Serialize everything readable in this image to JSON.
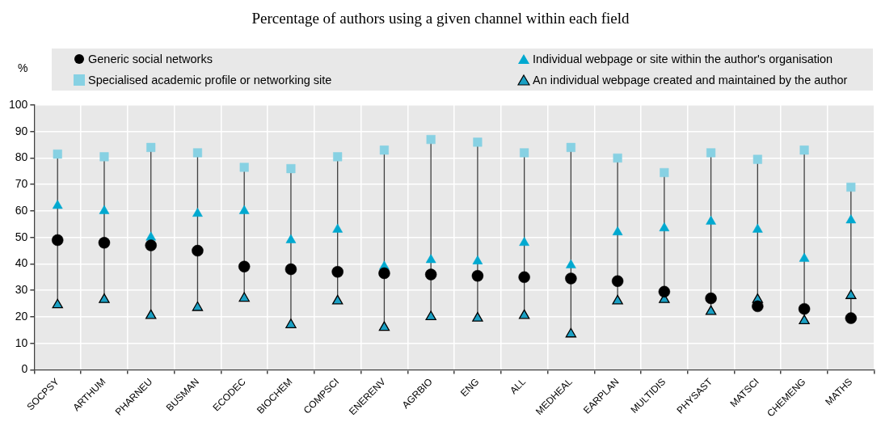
{
  "chart_data": {
    "type": "scatter",
    "title": "Percentage of authors using a given channel within each field",
    "ylabel": "%",
    "categories": [
      "SOCPSY",
      "ARTHUM",
      "PHARNEU",
      "BUSMAN",
      "ECODEC",
      "BIOCHEM",
      "COMPSCI",
      "ENERENV",
      "AGRBIO",
      "ENG",
      "ALL",
      "MEDHEAL",
      "EARPLAN",
      "MULTIDIS",
      "PHYSAST",
      "MATSCI",
      "CHEMENG",
      "MATHS"
    ],
    "series": [
      {
        "name": "Generic social networks",
        "color": "#000000",
        "marker": "circle",
        "values": [
          49,
          48,
          47,
          45,
          39,
          38,
          37,
          36.5,
          36,
          35.5,
          35,
          34.5,
          33.5,
          29.5,
          27,
          24,
          23,
          19.5
        ]
      },
      {
        "name": "Specialised academic profile or networking site",
        "color": "#87d1e3",
        "marker": "square",
        "values": [
          81.5,
          80.5,
          84,
          82,
          76.5,
          76,
          80.5,
          83,
          87,
          86,
          82,
          84,
          80,
          74.5,
          82,
          79.5,
          83,
          69
        ]
      },
      {
        "name": "Individual webpage or site within the author's organisation",
        "color": "#00a9d0",
        "marker": "triangle",
        "values": [
          62,
          60,
          50,
          59,
          60,
          49,
          53,
          39,
          41.5,
          41,
          48,
          39.5,
          52,
          53.5,
          56,
          53,
          42,
          56.5
        ]
      },
      {
        "name": "An individual webpage created and maintained by the author",
        "color": "#1aa0c4",
        "marker": "triangle",
        "values": [
          24.5,
          26.5,
          20.5,
          23.5,
          27,
          17,
          26,
          16,
          20,
          19.5,
          20.5,
          13.5,
          26,
          26.5,
          22,
          26.5,
          18.5,
          28
        ]
      }
    ],
    "ylim": [
      0,
      100
    ],
    "yticks": [
      0,
      10,
      20,
      30,
      40,
      50,
      60,
      70,
      80,
      90,
      100
    ],
    "grid": true,
    "legend": "top"
  }
}
